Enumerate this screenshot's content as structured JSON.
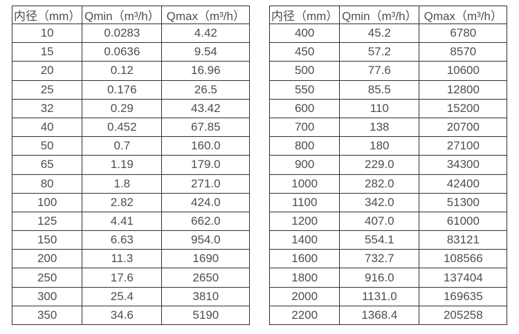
{
  "page": {
    "background_color": "#ffffff",
    "text_color": "#4d4d4d",
    "border_color": "#2e2e2e"
  },
  "tables": [
    {
      "headers": [
        "内径（mm）",
        "Qmin（m³/h）",
        "Qmax（m³/h）"
      ],
      "rows": [
        [
          "10",
          "0.0283",
          "4.42"
        ],
        [
          "15",
          "0.0636",
          "9.54"
        ],
        [
          "20",
          "0.12",
          "16.96"
        ],
        [
          "25",
          "0.176",
          "26.5"
        ],
        [
          "32",
          "0.29",
          "43.42"
        ],
        [
          "40",
          "0.452",
          "67.85"
        ],
        [
          "50",
          "0.7",
          "160.0"
        ],
        [
          "65",
          "1.19",
          "179.0"
        ],
        [
          "80",
          "1.8",
          "271.0"
        ],
        [
          "100",
          "2.82",
          "424.0"
        ],
        [
          "125",
          "4.41",
          "662.0"
        ],
        [
          "150",
          "6.63",
          "954.0"
        ],
        [
          "200",
          "11.3",
          "1690"
        ],
        [
          "250",
          "17.6",
          "2650"
        ],
        [
          "300",
          "25.4",
          "3810"
        ],
        [
          "350",
          "34.6",
          "5190"
        ]
      ]
    },
    {
      "headers": [
        "内径（mm）",
        "Qmin（m³/h）",
        "Qmax（m³/h）"
      ],
      "rows": [
        [
          "400",
          "45.2",
          "6780"
        ],
        [
          "450",
          "57.2",
          "8570"
        ],
        [
          "500",
          "77.6",
          "10600"
        ],
        [
          "550",
          "85.5",
          "12800"
        ],
        [
          "600",
          "110",
          "15200"
        ],
        [
          "700",
          "138",
          "20700"
        ],
        [
          "800",
          "180",
          "27100"
        ],
        [
          "900",
          "229.0",
          "34300"
        ],
        [
          "1000",
          "282.0",
          "42400"
        ],
        [
          "1100",
          "342.0",
          "51300"
        ],
        [
          "1200",
          "407.0",
          "61000"
        ],
        [
          "1400",
          "554.1",
          "83121"
        ],
        [
          "1600",
          "732.7",
          "108566"
        ],
        [
          "1800",
          "916.0",
          "137404"
        ],
        [
          "2000",
          "1131.0",
          "169635"
        ],
        [
          "2200",
          "1368.4",
          "205258"
        ]
      ]
    }
  ]
}
